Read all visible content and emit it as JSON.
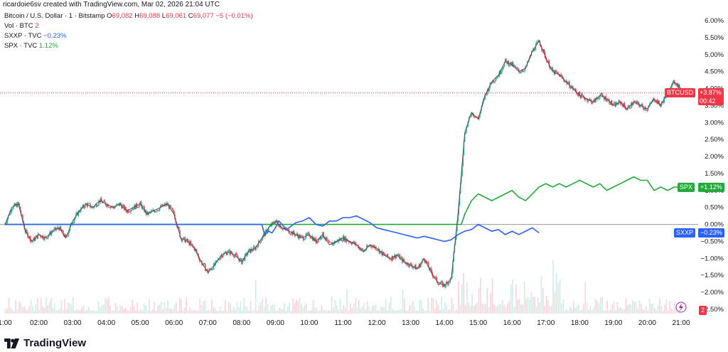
{
  "credit": "ricardoie6sv created with TradingView.com, Mar 02, 2026 21:04 UTC",
  "legend": {
    "main": {
      "name": "Bitcoin / U.S. Dollar · 1 · Bitstamp",
      "o_label": "O",
      "o_val": "69,082",
      "h_label": "H",
      "h_val": "69,088",
      "l_label": "L",
      "l_val": "69,061",
      "c_label": "C",
      "c_val": "69,077",
      "change": "−5 (−0.01%)"
    },
    "vol": {
      "name": "Vol · BTC",
      "value": "2"
    },
    "sxxp": {
      "name": "SXXP · TVC",
      "value": "−0.23%"
    },
    "spx": {
      "name": "SPX · TVC",
      "value": "1.12%"
    }
  },
  "tags": {
    "btc_name": "BTCUSD",
    "btc_val": "+3.87%",
    "btc_timer": "00:42",
    "spx_name": "SPX",
    "spx_val": "+1.12%",
    "sxxp_name": "SXXP",
    "sxxp_val": "−0.23%",
    "vol_val": "2"
  },
  "brand": "TradingView",
  "colors": {
    "up": "#22ab94",
    "down": "#f23645",
    "btc_line": "#555555",
    "sxxp": "#2962ff",
    "spx": "#22ab3a",
    "ref": "#f23645"
  },
  "chart_data": {
    "type": "line",
    "ylim": [
      -2.7,
      6.3
    ],
    "xlim": [
      1.0,
      21.5
    ],
    "y_ticks": [
      "6.00%",
      "5.50%",
      "5.00%",
      "4.50%",
      "4.00%",
      "3.50%",
      "3.00%",
      "2.50%",
      "2.00%",
      "1.50%",
      "1.00%",
      "0.50%",
      "0.00%",
      "−0.50%",
      "−1.00%",
      "−1.50%",
      "−2.00%",
      "−2.50%"
    ],
    "y_tick_values": [
      6.0,
      5.5,
      5.0,
      4.5,
      4.0,
      3.5,
      3.0,
      2.5,
      2.0,
      1.5,
      1.0,
      0.5,
      0.0,
      -0.5,
      -1.0,
      -1.5,
      -2.0,
      -2.5
    ],
    "x_ticks": [
      "1:00",
      "02:00",
      "03:00",
      "04:00",
      "05:00",
      "06:00",
      "07:00",
      "08:00",
      "09:00",
      "10:00",
      "11:00",
      "12:00",
      "13:00",
      "14:00",
      "15:00",
      "16:00",
      "17:00",
      "18:00",
      "19:00",
      "20:00",
      "21:00"
    ],
    "x_tick_values": [
      1,
      2,
      3,
      4,
      5,
      6,
      7,
      8,
      9,
      10,
      11,
      12,
      13,
      14,
      15,
      16,
      17,
      18,
      19,
      20,
      21
    ],
    "series": [
      {
        "name": "BTCUSD",
        "x": [
          1.0,
          1.2,
          1.4,
          1.6,
          1.8,
          2.0,
          2.2,
          2.4,
          2.6,
          2.8,
          3.0,
          3.2,
          3.4,
          3.6,
          3.8,
          4.0,
          4.2,
          4.4,
          4.6,
          4.8,
          5.0,
          5.2,
          5.4,
          5.6,
          5.8,
          6.0,
          6.2,
          6.4,
          6.6,
          6.8,
          7.0,
          7.2,
          7.4,
          7.6,
          7.8,
          8.0,
          8.2,
          8.4,
          8.6,
          8.8,
          9.0,
          9.2,
          9.4,
          9.6,
          9.8,
          10.0,
          10.2,
          10.4,
          10.6,
          10.8,
          11.0,
          11.2,
          11.4,
          11.6,
          11.8,
          12.0,
          12.2,
          12.4,
          12.6,
          12.8,
          13.0,
          13.2,
          13.4,
          13.6,
          13.8,
          14.0,
          14.2,
          14.4,
          14.6,
          14.8,
          15.0,
          15.2,
          15.4,
          15.6,
          15.8,
          16.0,
          16.2,
          16.4,
          16.6,
          16.8,
          17.0,
          17.2,
          17.4,
          17.6,
          17.8,
          18.0,
          18.2,
          18.4,
          18.6,
          18.8,
          19.0,
          19.2,
          19.4,
          19.6,
          19.8,
          20.0,
          20.2,
          20.4,
          20.6,
          20.8,
          21.0
        ],
        "y": [
          0.0,
          0.5,
          0.6,
          -0.2,
          -0.5,
          -0.3,
          -0.4,
          -0.2,
          -0.1,
          -0.4,
          0.1,
          0.4,
          0.6,
          0.5,
          0.7,
          0.6,
          0.5,
          0.6,
          0.4,
          0.5,
          0.6,
          0.3,
          0.4,
          0.5,
          0.6,
          0.3,
          -0.4,
          -0.5,
          -0.7,
          -1.1,
          -1.4,
          -1.2,
          -0.9,
          -0.8,
          -0.9,
          -1.1,
          -0.8,
          -0.7,
          -0.4,
          -0.1,
          0.1,
          -0.1,
          -0.2,
          -0.3,
          -0.4,
          -0.3,
          -0.5,
          -0.3,
          -0.6,
          -0.5,
          -0.4,
          -0.5,
          -0.6,
          -0.8,
          -0.6,
          -0.7,
          -0.9,
          -1.0,
          -0.9,
          -1.1,
          -1.2,
          -1.3,
          -1.0,
          -1.4,
          -1.7,
          -1.8,
          -1.6,
          0.3,
          2.7,
          3.3,
          3.1,
          3.8,
          4.2,
          4.4,
          4.8,
          4.7,
          4.5,
          4.6,
          5.1,
          5.4,
          4.9,
          4.5,
          4.4,
          4.2,
          4.0,
          3.8,
          3.7,
          3.6,
          3.8,
          3.7,
          3.5,
          3.6,
          3.4,
          3.6,
          3.5,
          3.4,
          3.7,
          3.5,
          3.9,
          4.2,
          4.0
        ]
      },
      {
        "name": "SPX",
        "x": [
          1.0,
          14.5,
          14.6,
          14.7,
          14.8,
          15.0,
          15.2,
          15.4,
          15.6,
          15.8,
          16.0,
          16.2,
          16.4,
          16.6,
          16.8,
          17.0,
          17.2,
          17.4,
          17.6,
          17.8,
          18.0,
          18.2,
          18.4,
          18.6,
          18.8,
          19.0,
          19.2,
          19.4,
          19.6,
          19.8,
          20.0,
          20.2,
          20.4,
          20.6,
          20.8,
          21.0
        ],
        "y": [
          0.0,
          0.0,
          0.3,
          0.5,
          0.7,
          0.9,
          0.8,
          0.7,
          0.8,
          0.9,
          1.0,
          0.8,
          0.7,
          0.9,
          1.1,
          1.2,
          1.1,
          1.2,
          1.1,
          1.2,
          1.3,
          1.2,
          1.1,
          1.2,
          1.0,
          1.1,
          1.2,
          1.3,
          1.4,
          1.3,
          1.3,
          1.0,
          1.1,
          1.0,
          1.1,
          1.1
        ]
      },
      {
        "name": "SXXP",
        "x": [
          1.0,
          8.6,
          8.65,
          8.7,
          8.8,
          8.9,
          9.0,
          9.1,
          9.2,
          9.3,
          9.4,
          9.6,
          9.8,
          10.0,
          10.2,
          10.4,
          10.6,
          10.8,
          11.0,
          11.2,
          11.4,
          11.6,
          11.8,
          12.0,
          12.2,
          12.4,
          12.6,
          12.8,
          13.0,
          13.2,
          13.4,
          13.6,
          13.8,
          14.0,
          14.2,
          14.4,
          14.6,
          14.8,
          15.0,
          15.2,
          15.4,
          15.6,
          15.8,
          16.0,
          16.2,
          16.4,
          16.6,
          16.8
        ],
        "y": [
          0.0,
          0.0,
          -0.2,
          -0.3,
          -0.2,
          -0.25,
          -0.1,
          0.1,
          0.0,
          -0.15,
          -0.1,
          0.05,
          0.1,
          0.2,
          0.0,
          -0.05,
          0.1,
          0.1,
          0.2,
          0.2,
          0.25,
          0.15,
          0.05,
          -0.1,
          -0.15,
          -0.2,
          -0.25,
          -0.3,
          -0.35,
          -0.4,
          -0.35,
          -0.4,
          -0.45,
          -0.5,
          -0.45,
          -0.3,
          -0.2,
          -0.15,
          0.0,
          -0.1,
          -0.2,
          -0.15,
          -0.3,
          -0.2,
          -0.3,
          -0.2,
          -0.1,
          -0.25
        ]
      }
    ],
    "reference_line": 3.87
  }
}
